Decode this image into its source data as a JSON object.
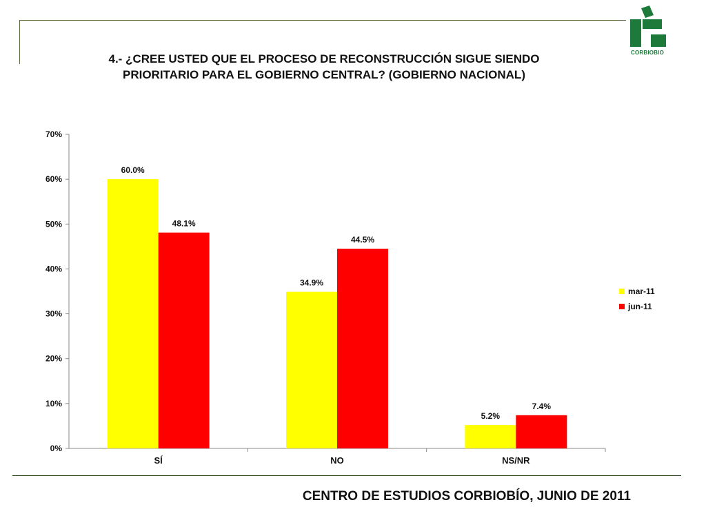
{
  "title": {
    "line1": "4.- ¿CREE USTED QUE EL PROCESO DE RECONSTRUCCIÓN SIGUE SIENDO",
    "line2": "PRIORITARIO PARA EL  GOBIERNO CENTRAL? (GOBIERNO NACIONAL)"
  },
  "logo": {
    "text": "CORBIOBIO",
    "icon": "corbiobio-logo-icon",
    "color": "#1e7a3a"
  },
  "footer": {
    "text": "CENTRO DE ESTUDIOS CORBIOBÍO, JUNIO DE 2011"
  },
  "chart_data": {
    "type": "bar",
    "title": "",
    "xlabel": "",
    "ylabel": "",
    "categories": [
      "SÍ",
      "NO",
      "NS/NR"
    ],
    "series": [
      {
        "name": "mar-11",
        "values": [
          60.0,
          34.9,
          5.2
        ],
        "labels": [
          "60.0%",
          "34.9%",
          "5.2%"
        ],
        "color": "#ffff00"
      },
      {
        "name": "jun-11",
        "values": [
          48.1,
          44.5,
          7.4
        ],
        "labels": [
          "48.1%",
          "44.5%",
          "7.4%"
        ],
        "color": "#ff0000"
      }
    ],
    "ylim": [
      0,
      70
    ],
    "yticks": [
      0,
      10,
      20,
      30,
      40,
      50,
      60,
      70
    ],
    "ytick_labels": [
      "0%",
      "10%",
      "20%",
      "30%",
      "40%",
      "50%",
      "60%",
      "70%"
    ],
    "grid": false,
    "legend_position": "right"
  }
}
